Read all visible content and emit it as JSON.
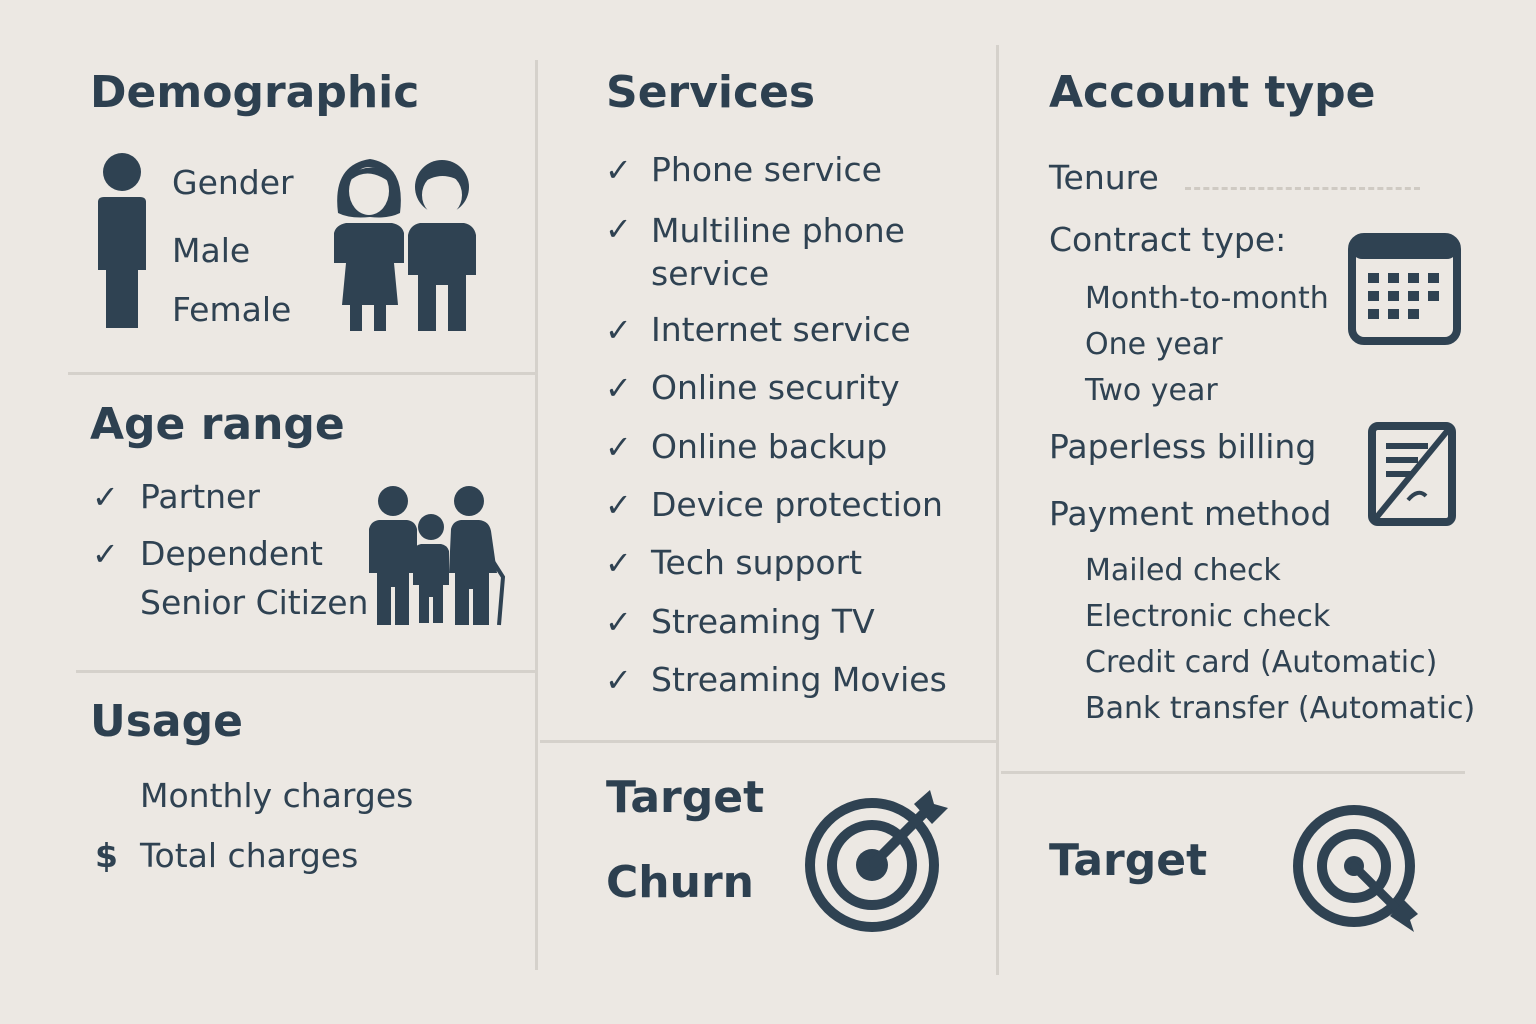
{
  "colors": {
    "background": "#ece8e3",
    "ink": "#2f4252",
    "divider": "#d5d1cb"
  },
  "demographic": {
    "title": "Demographic",
    "items": [
      "Gender",
      "Male",
      "Female"
    ],
    "icons": [
      "person-icon",
      "couple-icon"
    ]
  },
  "age_range": {
    "title": "Age range",
    "items": [
      "Partner",
      "Dependent",
      "Senior Citizen"
    ],
    "icons": [
      "family-icon"
    ]
  },
  "usage": {
    "title": "Usage",
    "items": [
      "Monthly charges",
      "Total charges"
    ],
    "currency_symbol": "$"
  },
  "services": {
    "title": "Services",
    "check_symbol": "✓",
    "items": [
      "Phone service",
      "Multiline phone service",
      "Internet service",
      "Online security",
      "Online backup",
      "Device protection",
      "Tech support",
      "Streaming TV",
      "Streaming Movies"
    ]
  },
  "target_middle": {
    "title": "Target",
    "subtitle": "Churn",
    "icon": "target-arrow-icon"
  },
  "account_type": {
    "title": "Account type",
    "tenure": "Tenure",
    "contract_type": "Contract type:",
    "contract_options": [
      "Month-to-month",
      "One year",
      "Two year"
    ],
    "paperless_billing": "Paperless billing",
    "payment_method": "Payment method",
    "payment_options": [
      "Mailed check",
      "Electronic check",
      "Credit card (Automatic)",
      "Bank transfer (Automatic)"
    ],
    "icons": [
      "calendar-icon",
      "invoice-icon"
    ]
  },
  "target_right": {
    "title": "Target",
    "icon": "target-arrow-icon"
  }
}
